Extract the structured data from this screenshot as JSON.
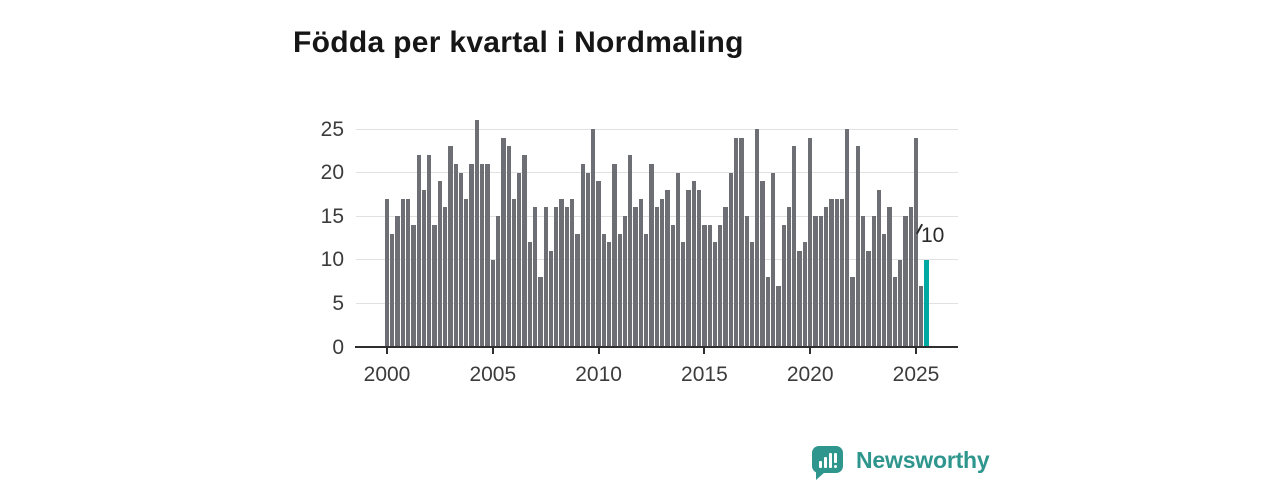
{
  "title": "Födda per kvartal i Nordmaling",
  "annotation": {
    "label": "10"
  },
  "brand": {
    "name": "Newsworthy",
    "color": "#2f968e",
    "icon": "bar-chart-speech-bubble"
  },
  "colors": {
    "bar": "#6e6e75",
    "highlight": "#00a9a2",
    "gridline": "#e1e1e1",
    "axis": "#2f2f2f",
    "tick_label": "#3c3c3c",
    "title": "#161616"
  },
  "chart_data": {
    "type": "bar",
    "title": "Födda per kvartal i Nordmaling",
    "xlabel": "",
    "ylabel": "",
    "x_tick_labels": [
      "2000",
      "2005",
      "2010",
      "2015",
      "2020",
      "2025"
    ],
    "y_tick_labels": [
      "0",
      "5",
      "10",
      "15",
      "20",
      "25"
    ],
    "y_ticks": [
      0,
      5,
      10,
      15,
      20,
      25
    ],
    "ylim": [
      0,
      26
    ],
    "grid": "horizontal",
    "legend": "none",
    "start_period": "2000 Q1",
    "end_period": "2025 Q3",
    "series_by_year": [
      {
        "year": 2000,
        "q": [
          17,
          13,
          15,
          17
        ]
      },
      {
        "year": 2001,
        "q": [
          17,
          14,
          22,
          18
        ]
      },
      {
        "year": 2002,
        "q": [
          22,
          14,
          19,
          16
        ]
      },
      {
        "year": 2003,
        "q": [
          23,
          21,
          20,
          17
        ]
      },
      {
        "year": 2004,
        "q": [
          21,
          26,
          21,
          21
        ]
      },
      {
        "year": 2005,
        "q": [
          10,
          15,
          24,
          23
        ]
      },
      {
        "year": 2006,
        "q": [
          17,
          20,
          22,
          12
        ]
      },
      {
        "year": 2007,
        "q": [
          16,
          8,
          16,
          11
        ]
      },
      {
        "year": 2008,
        "q": [
          16,
          17,
          16,
          17
        ]
      },
      {
        "year": 2009,
        "q": [
          13,
          21,
          20,
          25
        ]
      },
      {
        "year": 2010,
        "q": [
          19,
          13,
          12,
          21
        ]
      },
      {
        "year": 2011,
        "q": [
          13,
          15,
          22,
          16
        ]
      },
      {
        "year": 2012,
        "q": [
          17,
          13,
          21,
          16
        ]
      },
      {
        "year": 2013,
        "q": [
          17,
          18,
          14,
          20
        ]
      },
      {
        "year": 2014,
        "q": [
          12,
          18,
          19,
          18
        ]
      },
      {
        "year": 2015,
        "q": [
          14,
          14,
          12,
          14
        ]
      },
      {
        "year": 2016,
        "q": [
          16,
          20,
          24,
          24
        ]
      },
      {
        "year": 2017,
        "q": [
          15,
          12,
          25,
          19
        ]
      },
      {
        "year": 2018,
        "q": [
          8,
          20,
          7,
          14
        ]
      },
      {
        "year": 2019,
        "q": [
          16,
          23,
          11,
          12
        ]
      },
      {
        "year": 2020,
        "q": [
          24,
          15,
          15,
          16
        ]
      },
      {
        "year": 2021,
        "q": [
          17,
          17,
          17,
          25
        ]
      },
      {
        "year": 2022,
        "q": [
          8,
          23,
          15,
          11
        ]
      },
      {
        "year": 2023,
        "q": [
          15,
          18,
          13,
          16
        ]
      },
      {
        "year": 2024,
        "q": [
          8,
          10,
          15,
          16
        ]
      },
      {
        "year": 2025,
        "q": [
          24,
          7,
          10
        ]
      }
    ],
    "highlight": {
      "period": "2025 Q3",
      "value": 10,
      "label": "10",
      "color": "#00a9a2",
      "position": "last"
    }
  }
}
